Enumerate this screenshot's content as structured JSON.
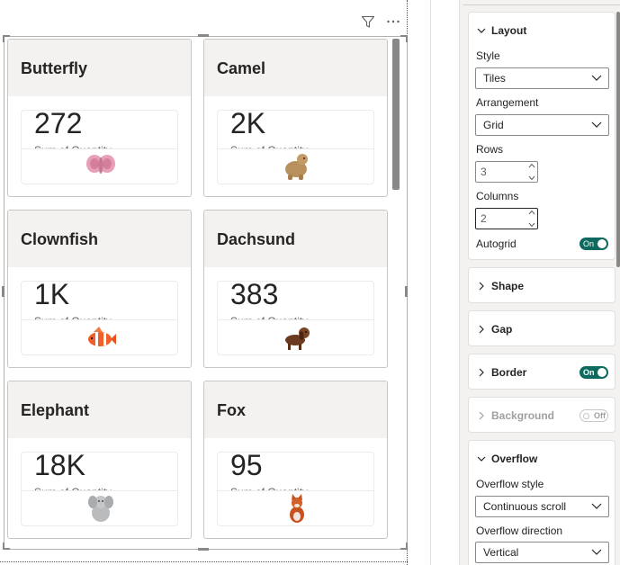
{
  "canvas": {
    "header_icons": [
      "filter-icon",
      "more-options-icon"
    ],
    "tiles": [
      {
        "title": "Butterfly",
        "value": "272",
        "subtitle": "Sum of Quantity",
        "image": "butterfly-plush"
      },
      {
        "title": "Camel",
        "value": "2K",
        "subtitle": "Sum of Quantity",
        "image": "camel-plush"
      },
      {
        "title": "Clownfish",
        "value": "1K",
        "subtitle": "Sum of Quantity",
        "image": "clownfish-plush"
      },
      {
        "title": "Dachsund",
        "value": "383",
        "subtitle": "Sum of Quantity",
        "image": "dachshund-plush"
      },
      {
        "title": "Elephant",
        "value": "18K",
        "subtitle": "Sum of Quantity",
        "image": "elephant-plush"
      },
      {
        "title": "Fox",
        "value": "95",
        "subtitle": "Sum of Quantity",
        "image": "fox-plush"
      }
    ]
  },
  "format_pane": {
    "layout": {
      "title": "Layout",
      "style_label": "Style",
      "style_value": "Tiles",
      "arrangement_label": "Arrangement",
      "arrangement_value": "Grid",
      "rows_label": "Rows",
      "rows_value": "3",
      "columns_label": "Columns",
      "columns_value": "2",
      "autogrid_label": "Autogrid",
      "autogrid_toggle": "On"
    },
    "shape": {
      "title": "Shape"
    },
    "gap": {
      "title": "Gap"
    },
    "border": {
      "title": "Border",
      "toggle": "On"
    },
    "background": {
      "title": "Background",
      "toggle": "Off"
    },
    "overflow": {
      "title": "Overflow",
      "style_label": "Overflow style",
      "style_value": "Continuous scroll",
      "direction_label": "Overflow direction",
      "direction_value": "Vertical"
    }
  },
  "colors": {
    "toggle_on": "#0e6a5e",
    "tile_header": "#f3f2f1",
    "pane_background": "#f3f2f1"
  }
}
